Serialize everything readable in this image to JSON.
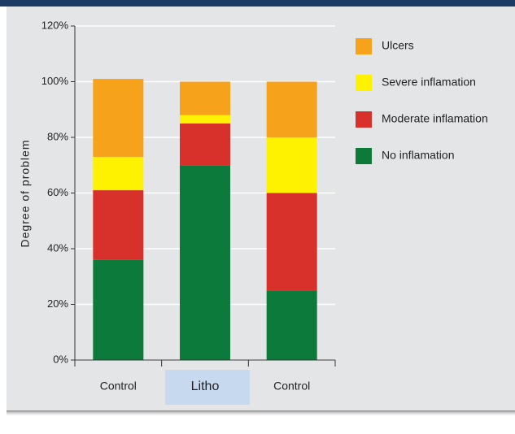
{
  "chart_data": {
    "type": "stacked_bar",
    "y_label": "Degree of problem",
    "categories": [
      "Control",
      "Litho",
      "Control"
    ],
    "series": [
      {
        "name": "No inflamation",
        "color": "#0b7a3b",
        "values": [
          36,
          70,
          25
        ]
      },
      {
        "name": "Moderate inflamation",
        "color": "#d8302a",
        "values": [
          25,
          15,
          35
        ]
      },
      {
        "name": "Severe inflamation",
        "color": "#fff200",
        "values": [
          12,
          3,
          20
        ]
      },
      {
        "name": "Ulcers",
        "color": "#f7a21b",
        "values": [
          28,
          12,
          20
        ]
      }
    ],
    "ylim": [
      0,
      120
    ],
    "yticks": [
      {
        "value": 0,
        "label": "0%"
      },
      {
        "value": 20,
        "label": "20%"
      },
      {
        "value": 40,
        "label": "40%"
      },
      {
        "value": 60,
        "label": "60%"
      },
      {
        "value": 80,
        "label": "80%"
      },
      {
        "value": 100,
        "label": "100%"
      },
      {
        "value": 120,
        "label": "120%"
      }
    ],
    "grid": true
  }
}
